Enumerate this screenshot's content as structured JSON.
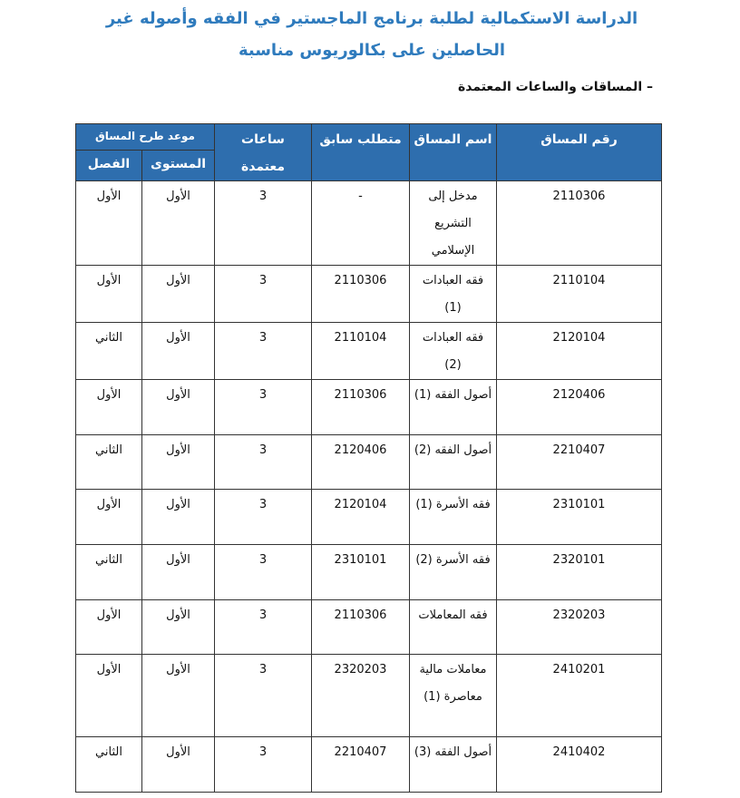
{
  "title": {
    "line1": "الدراسة الاستكمالية لطلبة برنامج الماجستير في الفقه وأصوله غير",
    "line2": "الحاصلين على بكالوريوس مناسبة"
  },
  "section_heading": "– المساقات والساعات المعتمدة",
  "table": {
    "colors": {
      "header_bg": "#2e6eae",
      "header_text": "#ffffff"
    },
    "headers": {
      "course_number": "رقم المساق",
      "course_name": "اسم المساق",
      "prerequisite": "متطلب سابق",
      "credit_hours": "ساعات معتمدة",
      "offering_time": "موعد طرح المساق",
      "level": "المستوى",
      "semester": "الفصل"
    },
    "rows": [
      {
        "number": "2110306",
        "name": "مدخل إلى التشريع الإسلامي",
        "prereq": "-",
        "hours": "3",
        "level": "الأول",
        "semester": "الأول"
      },
      {
        "number": "2110104",
        "name": "فقه العبادات (1)",
        "prereq": "2110306",
        "hours": "3",
        "level": "الأول",
        "semester": "الأول"
      },
      {
        "number": "2120104",
        "name": "فقه العبادات (2)",
        "prereq": "2110104",
        "hours": "3",
        "level": "الأول",
        "semester": "الثاني"
      },
      {
        "number": "2120406",
        "name": "أصول الفقه (1)",
        "prereq": "2110306",
        "hours": "3",
        "level": "الأول",
        "semester": "الأول"
      },
      {
        "number": "2210407",
        "name": "أصول الفقه (2)",
        "prereq": "2120406",
        "hours": "3",
        "level": "الأول",
        "semester": "الثاني"
      },
      {
        "number": "2310101",
        "name": "فقه الأسرة (1)",
        "prereq": "2120104",
        "hours": "3",
        "level": "الأول",
        "semester": "الأول"
      },
      {
        "number": "2320101",
        "name": "فقه الأسرة (2)",
        "prereq": "2310101",
        "hours": "3",
        "level": "الأول",
        "semester": "الثاني"
      },
      {
        "number": "2320203",
        "name": "فقه المعاملات",
        "prereq": "2110306",
        "hours": "3",
        "level": "الأول",
        "semester": "الأول"
      },
      {
        "number": "2410201",
        "name": "معاملات مالية معاصرة (1)",
        "prereq": "2320203",
        "hours": "3",
        "level": "الأول",
        "semester": "الأول"
      },
      {
        "number": "2410402",
        "name": "أصول الفقه (3)",
        "prereq": "2210407",
        "hours": "3",
        "level": "الأول",
        "semester": "الثاني"
      }
    ]
  }
}
